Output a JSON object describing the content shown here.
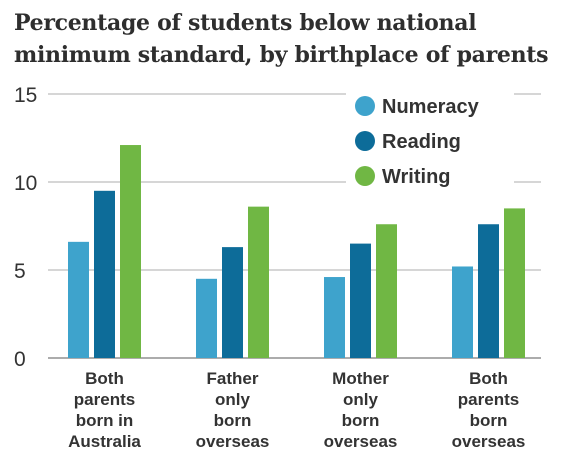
{
  "title_lines": [
    "Percentage  of students below national",
    "minimum standard, by birthplace of parents"
  ],
  "chart_data": {
    "type": "bar",
    "title": "Percentage  of students below national minimum standard, by birthplace of parents",
    "xlabel": "",
    "ylabel": "",
    "ylim": [
      0,
      15
    ],
    "yticks": [
      0,
      5,
      10,
      15
    ],
    "grid": true,
    "legend_position": "top-right",
    "categories": [
      [
        "Both",
        "parents",
        "born in",
        "Australia"
      ],
      [
        "Father",
        "only",
        "born",
        "overseas"
      ],
      [
        "Mother",
        "only",
        "born",
        "overseas"
      ],
      [
        "Both",
        "parents",
        "born",
        "overseas"
      ]
    ],
    "series": [
      {
        "name": "Numeracy",
        "color": "#3ea3cc",
        "values": [
          6.6,
          4.5,
          4.6,
          5.2
        ]
      },
      {
        "name": "Reading",
        "color": "#0d6c99",
        "values": [
          9.5,
          6.3,
          6.5,
          7.6
        ]
      },
      {
        "name": "Writing",
        "color": "#70b744",
        "values": [
          12.1,
          8.6,
          7.6,
          8.5
        ]
      }
    ]
  }
}
